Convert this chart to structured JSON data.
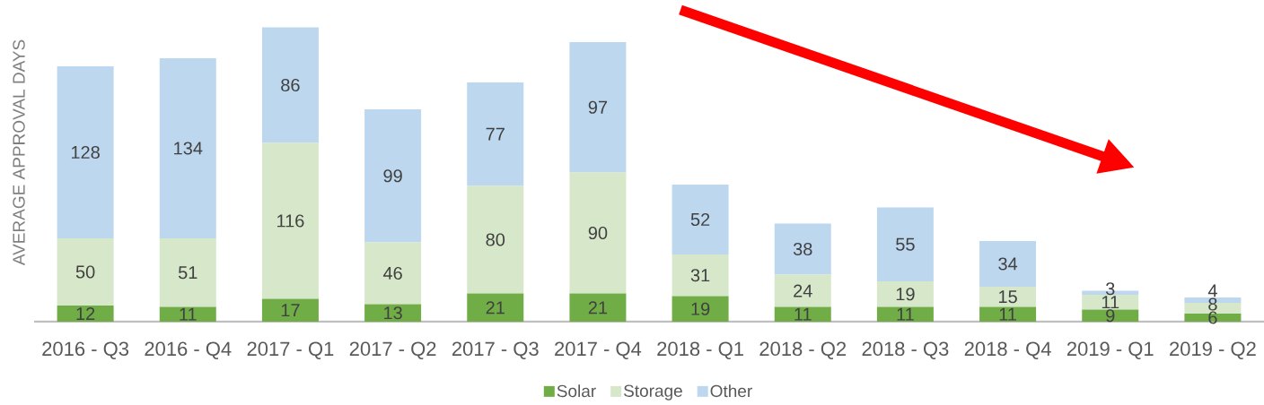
{
  "chart_data": {
    "type": "bar",
    "stacked": true,
    "ylabel": "AVERAGE APPROVAL DAYS",
    "categories": [
      "2016 - Q3",
      "2016 - Q4",
      "2017 - Q1",
      "2017 - Q2",
      "2017 - Q3",
      "2017 - Q4",
      "2018 - Q1",
      "2018 - Q2",
      "2018 - Q3",
      "2018 - Q4",
      "2019 - Q1",
      "2019 - Q2"
    ],
    "series": [
      {
        "name": "Solar",
        "color": "#70ad47",
        "values": [
          12,
          11,
          17,
          13,
          21,
          21,
          19,
          11,
          11,
          11,
          9,
          6
        ]
      },
      {
        "name": "Storage",
        "color": "#d6e8c9",
        "values": [
          50,
          51,
          116,
          46,
          80,
          90,
          31,
          24,
          19,
          15,
          11,
          8
        ]
      },
      {
        "name": "Other",
        "color": "#bdd7ee",
        "values": [
          128,
          134,
          86,
          99,
          77,
          97,
          52,
          38,
          55,
          34,
          3,
          4
        ]
      }
    ],
    "ylim": [
      0,
      220
    ],
    "tick_labels": "x",
    "data_labels": true,
    "legend": "bottom"
  }
}
